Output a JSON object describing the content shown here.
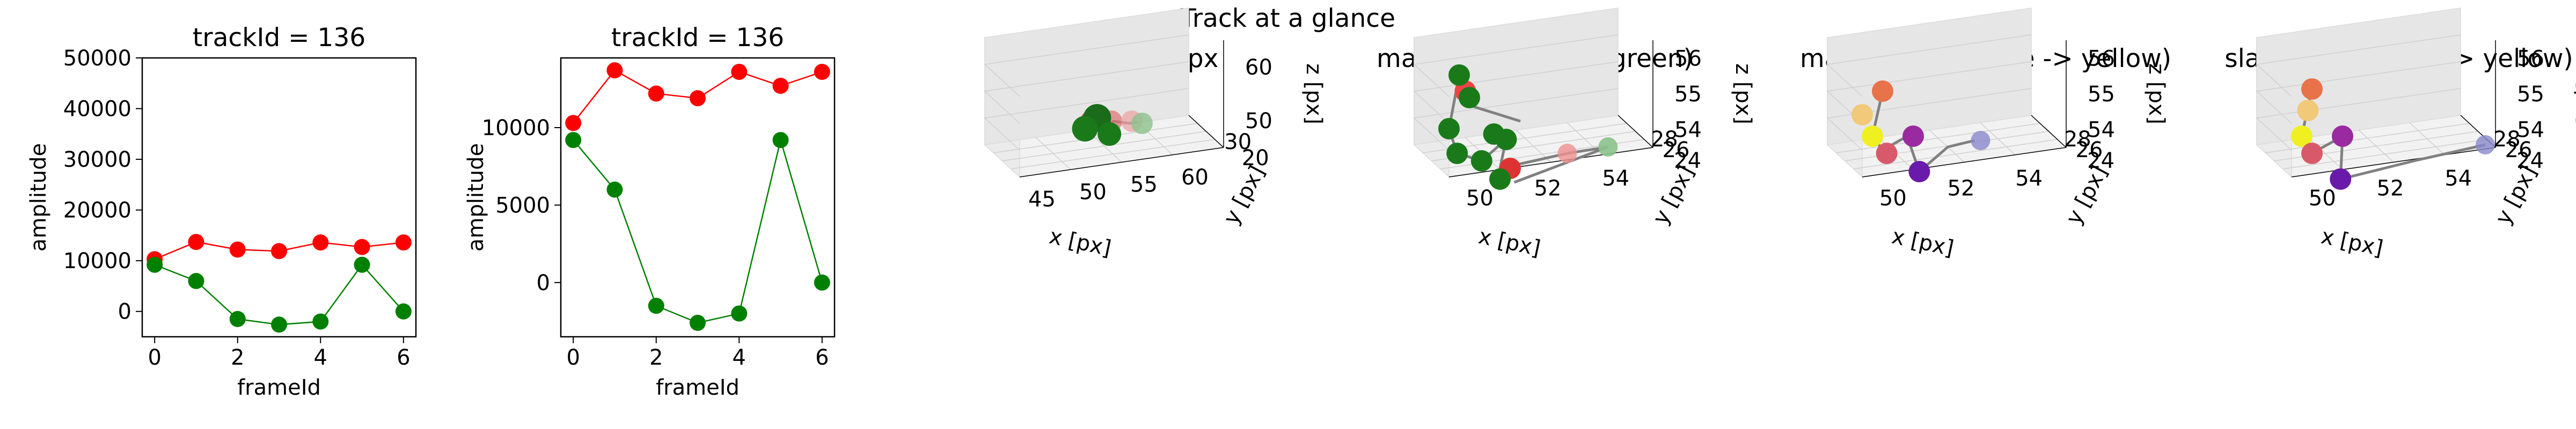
{
  "suptitle": "Track at a glance",
  "chart_data": [
    {
      "type": "line",
      "title": "trackId = 136",
      "xlabel": "frameId",
      "ylabel": "amplitude",
      "x": [
        0,
        1,
        2,
        3,
        4,
        5,
        6
      ],
      "xticks": [
        "0",
        "2",
        "4",
        "6"
      ],
      "yticks": [
        "0",
        "10000",
        "20000",
        "30000",
        "40000",
        "50000"
      ],
      "ylim": [
        -5000,
        50000
      ],
      "series": [
        {
          "color": "#ff0000",
          "values": [
            10300,
            13700,
            12200,
            11900,
            13600,
            12700,
            13600
          ]
        },
        {
          "color": "#008000",
          "values": [
            9200,
            6000,
            -1500,
            -2600,
            -2000,
            9200,
            0
          ]
        }
      ]
    },
    {
      "type": "line",
      "title": "trackId = 136",
      "xlabel": "frameId",
      "ylabel": "amplitude",
      "x": [
        0,
        1,
        2,
        3,
        4,
        5,
        6
      ],
      "xticks": [
        "0",
        "2",
        "4",
        "6"
      ],
      "yticks": [
        "0",
        "5000",
        "10000"
      ],
      "ylim": [
        -3500,
        14500
      ],
      "series": [
        {
          "color": "#ff0000",
          "values": [
            10300,
            13700,
            12200,
            11900,
            13600,
            12700,
            13600
          ]
        },
        {
          "color": "#008000",
          "values": [
            9200,
            6000,
            -1500,
            -2600,
            -2000,
            9200,
            0
          ]
        }
      ]
    },
    {
      "type": "scatter3d",
      "title": "context +- 10px",
      "xlabel": "x [px]",
      "ylabel": "y [px]",
      "zlabel": "z [px]",
      "xticks": [
        "45",
        "50",
        "55",
        "60"
      ],
      "yticks": [
        "20",
        "30"
      ],
      "zticks": [
        "50",
        "60"
      ]
    },
    {
      "type": "scatter3d",
      "title": "master(red) slave(green)",
      "xlabel": "x [px]",
      "ylabel": "y [px]",
      "zlabel": "z [px]",
      "xticks": [
        "50",
        "52",
        "54"
      ],
      "yticks": [
        "24",
        "26",
        "28"
      ],
      "zticks": [
        "54",
        "55",
        "56"
      ]
    },
    {
      "type": "scatter3d",
      "title": "master (time: blue -> yellow)",
      "xlabel": "x [px]",
      "ylabel": "y [px]",
      "zlabel": "z [px]",
      "xticks": [
        "50",
        "52",
        "54"
      ],
      "yticks": [
        "24",
        "26",
        "28"
      ],
      "zticks": [
        "54",
        "55",
        "56"
      ]
    },
    {
      "type": "scatter3d",
      "title": "slave (time: blue -> yellow)",
      "xlabel": "x [px]",
      "ylabel": "y [px]",
      "zlabel": "z [px]",
      "xticks": [
        "50",
        "52",
        "54"
      ],
      "yticks": [
        "24",
        "26",
        "28"
      ],
      "zticks": [
        "54",
        "55",
        "56"
      ]
    }
  ]
}
